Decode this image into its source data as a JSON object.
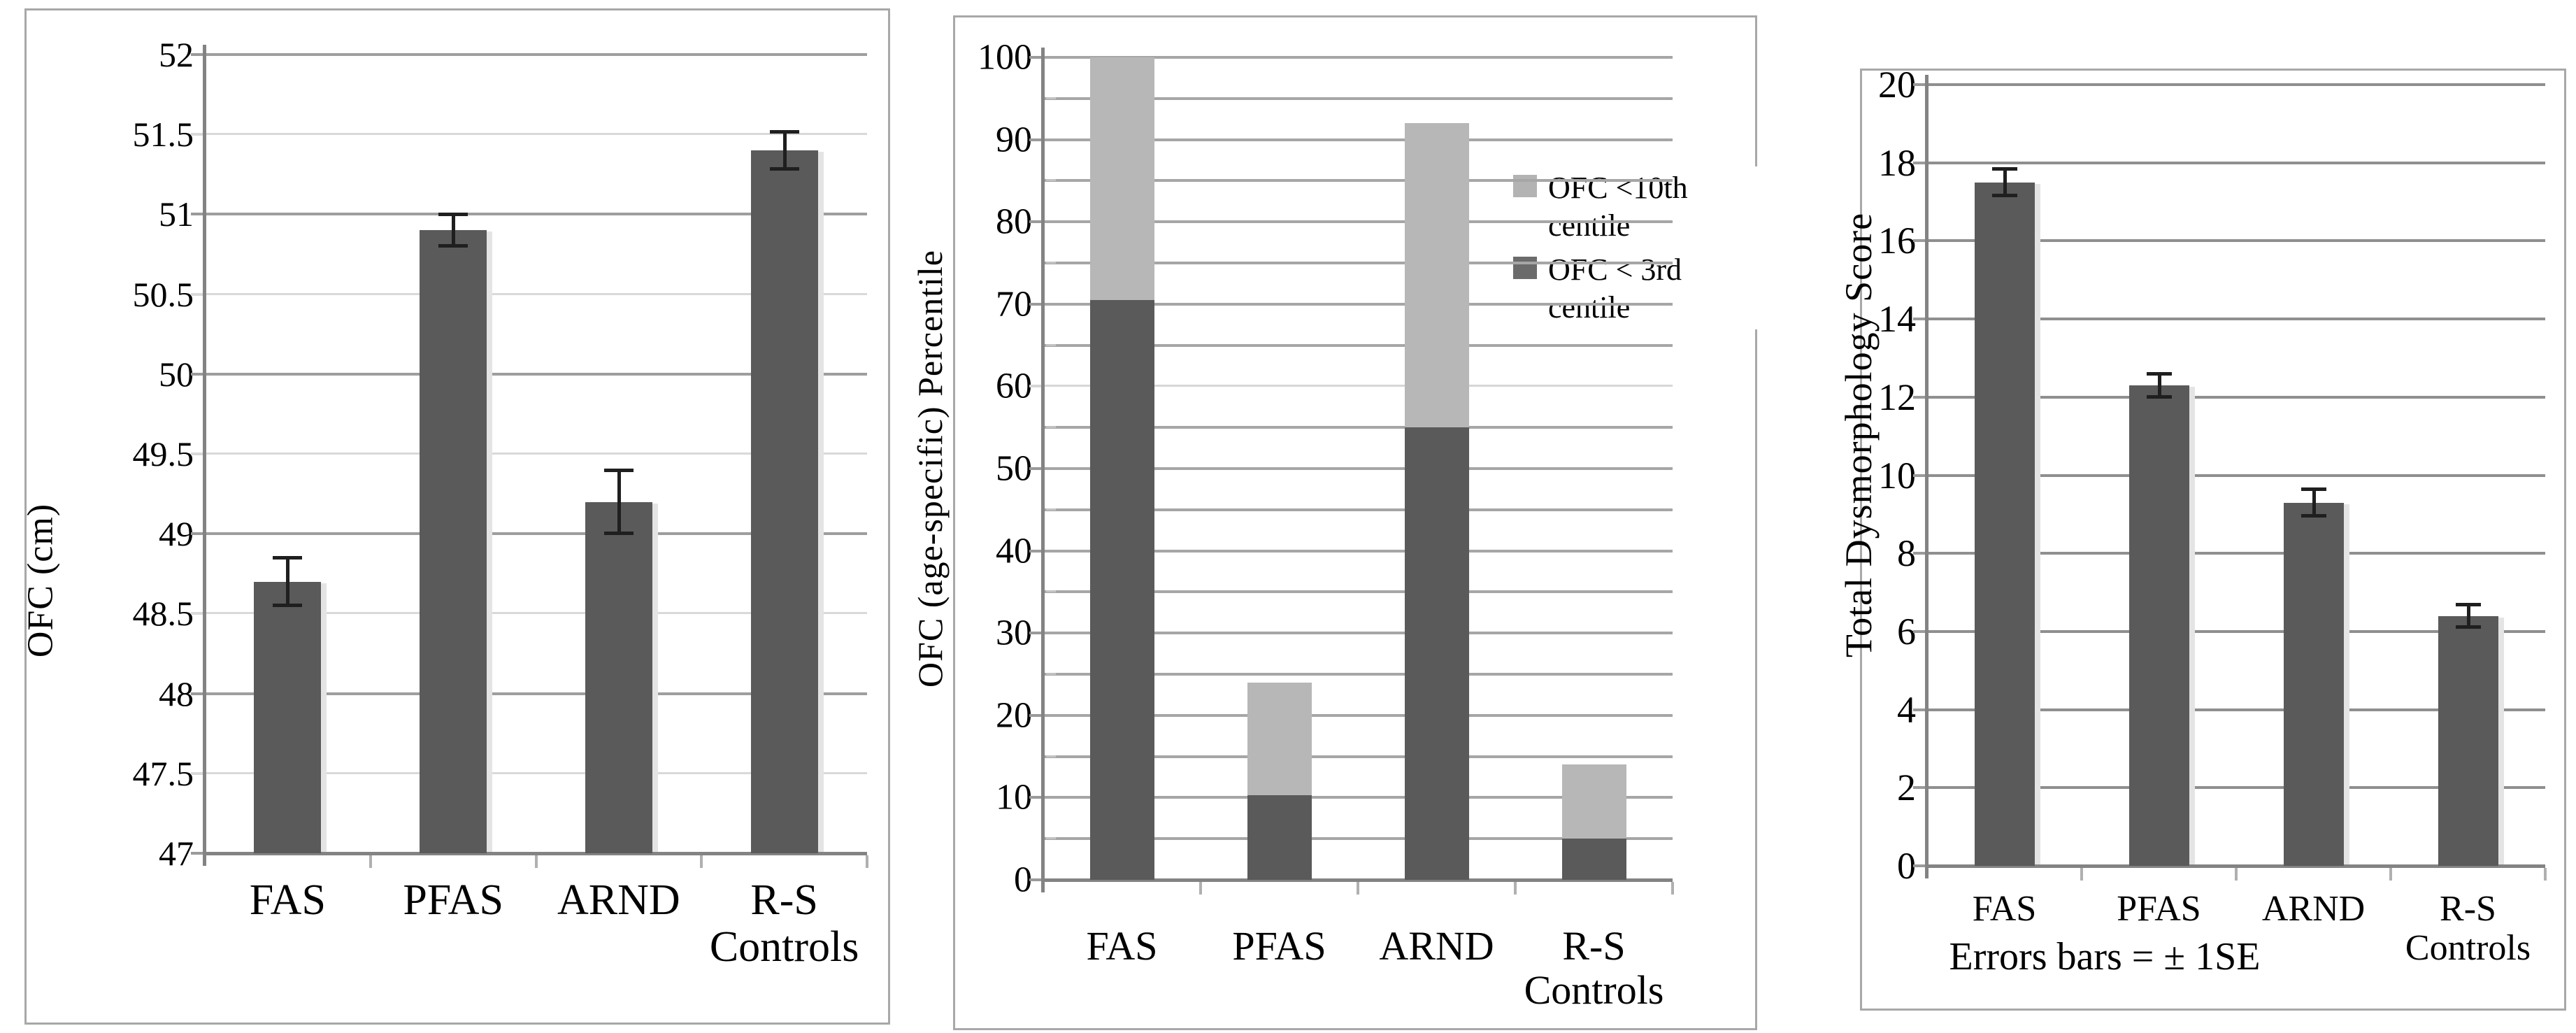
{
  "figure": {
    "description": "Three-panel bar chart figure comparing FAS, PFAS, ARND and R-S Controls",
    "background": "#ffffff",
    "text_color": "#000000",
    "panel_border_color": "#a8a8a8"
  },
  "chart_data": [
    {
      "type": "bar",
      "title": "",
      "xlabel": "",
      "ylabel": "OFC (cm)",
      "ylim": [
        47,
        52
      ],
      "ytick_step": 0.5,
      "ytick_label_step": 0.5,
      "grid": true,
      "categories": [
        "FAS",
        "PFAS",
        "ARND",
        "R-S\nControls"
      ],
      "values": [
        48.7,
        50.9,
        49.2,
        51.4
      ],
      "errors": [
        0.15,
        0.1,
        0.2,
        0.12
      ],
      "bar_color": "#5a5a5a"
    },
    {
      "type": "bar",
      "stacked": true,
      "title": "",
      "xlabel": "",
      "ylabel": "OFC (age-specific) Percentile",
      "ylim": [
        0,
        100
      ],
      "ytick_step": 5,
      "ytick_label_step": 10,
      "grid": true,
      "legend_position": "right-inside",
      "categories": [
        "FAS",
        "PFAS",
        "ARND",
        "R-S\nControls"
      ],
      "series": [
        {
          "name": "OFC < 3rd centile",
          "color": "#5a5a5a",
          "values": [
            70.5,
            10.3,
            55,
            5
          ]
        },
        {
          "name": "OFC <10th centile",
          "color": "#b7b7b7",
          "values": [
            29.5,
            13.7,
            37,
            9
          ]
        }
      ],
      "stack_totals": [
        100,
        24,
        92,
        14
      ],
      "legend": [
        {
          "label": "OFC <10th centile",
          "color": "#b3b3b3"
        },
        {
          "label": "OFC < 3rd centile",
          "color": "#6b6b6b"
        }
      ]
    },
    {
      "type": "bar",
      "title": "",
      "xlabel": "",
      "ylabel": "Total Dysmorphology Score",
      "ylim": [
        0,
        20
      ],
      "ytick_step": 2,
      "ytick_label_step": 2,
      "grid": true,
      "categories": [
        "FAS",
        "PFAS",
        "ARND",
        "R-S\nControls"
      ],
      "values": [
        17.5,
        12.3,
        9.3,
        6.4
      ],
      "errors": [
        0.35,
        0.3,
        0.35,
        0.3
      ],
      "footnote": "Errors bars = ± 1SE",
      "bar_color": "#5a5a5a"
    }
  ]
}
